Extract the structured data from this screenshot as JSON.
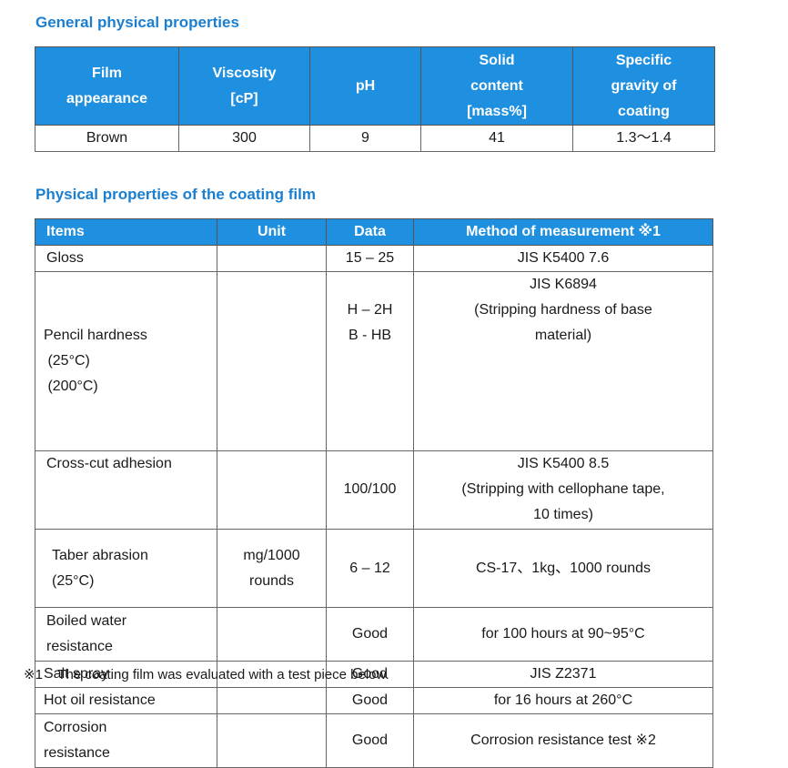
{
  "general": {
    "title": "General physical properties",
    "headers": [
      [
        "Film",
        "appearance"
      ],
      [
        "Viscosity",
        "[cP]"
      ],
      [
        "pH"
      ],
      [
        "Solid",
        "content",
        "[mass%]"
      ],
      [
        "Specific",
        "gravity of",
        "coating"
      ]
    ],
    "row": [
      "Brown",
      "300",
      "9",
      "41",
      "1.3〜1.4"
    ]
  },
  "coating": {
    "title": "Physical properties of the coating film",
    "headers": [
      "Items",
      "Unit",
      "Data",
      "Method of measurement  ※1"
    ],
    "rows": [
      {
        "item": [
          "Gloss"
        ],
        "unit": [],
        "data": [
          "15 – 25"
        ],
        "method": [
          "JIS K5400 7.6"
        ]
      },
      {
        "item": [
          "Pencil hardness",
          " (25°C)",
          " (200°C)"
        ],
        "unit": [],
        "data": [
          "",
          "H – 2H",
          "B - HB"
        ],
        "method": [
          "JIS K6894",
          "(Stripping hardness of base",
          "material)"
        ]
      },
      {
        "item": [
          "Cross-cut adhesion",
          "",
          ""
        ],
        "unit": [],
        "data": [
          "",
          "100/100",
          ""
        ],
        "method": [
          "JIS K5400 8.5",
          "(Stripping with cellophane tape,",
          "10 times)"
        ]
      },
      {
        "item": [
          "Taber abrasion",
          "(25°C)"
        ],
        "unit": [
          "mg/1000",
          "rounds"
        ],
        "data": [
          "6 – 12"
        ],
        "method": [
          "CS-17、1kg、1000 rounds"
        ]
      },
      {
        "item": [
          "Boiled water",
          "resistance"
        ],
        "unit": [],
        "data": [
          "Good"
        ],
        "method": [
          "for 100 hours at 90~95°C"
        ]
      },
      {
        "item": [
          "Salt spray"
        ],
        "unit": [],
        "data": [
          "Good"
        ],
        "method": [
          "JIS Z2371"
        ]
      },
      {
        "item": [
          "Hot oil resistance"
        ],
        "unit": [],
        "data": [
          "Good"
        ],
        "method": [
          "for 16 hours at 260°C"
        ]
      },
      {
        "item": [
          "Corrosion",
          "resistance"
        ],
        "unit": [],
        "data": [
          "Good"
        ],
        "method": [
          "Corrosion resistance test  ※2"
        ]
      }
    ]
  },
  "footnote": "※1    The coating film was evaluated with a test piece below."
}
